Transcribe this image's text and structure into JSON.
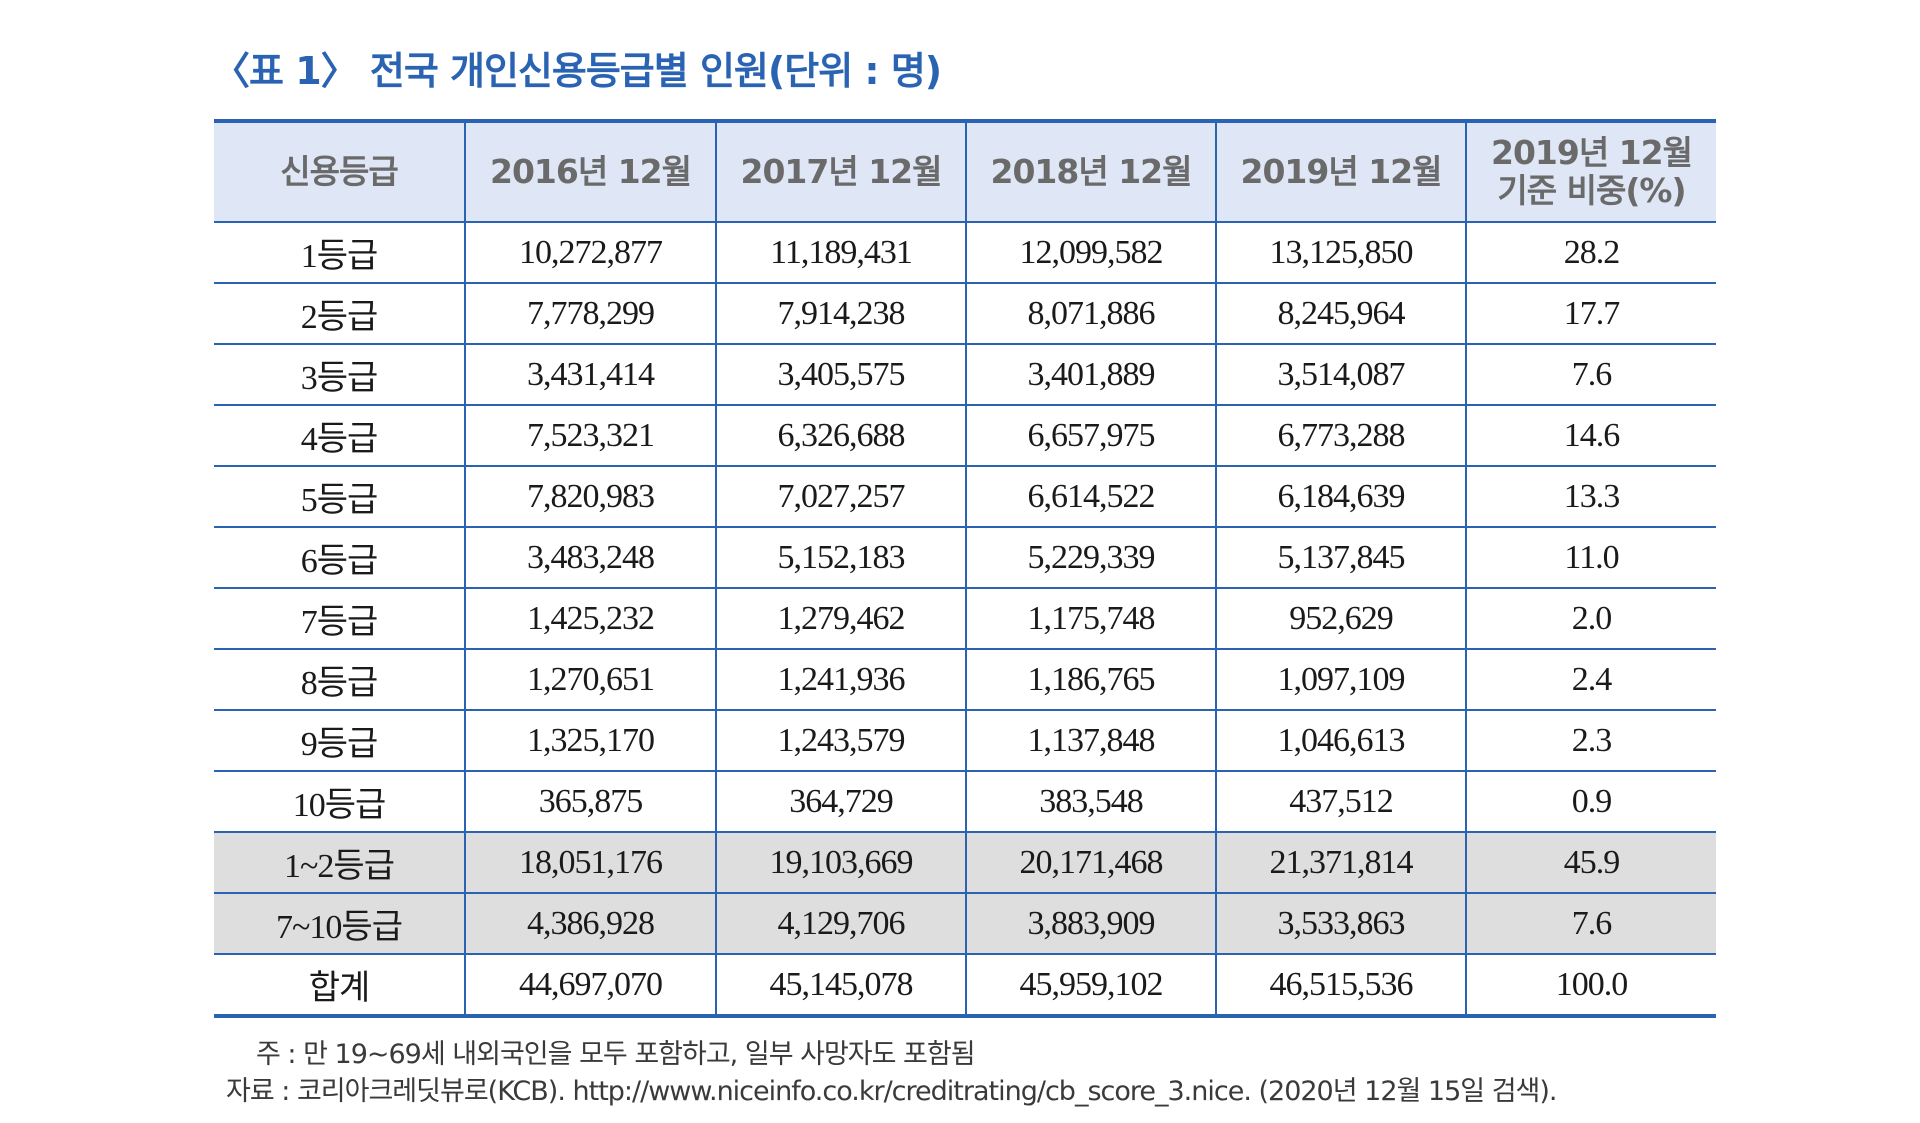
{
  "table": {
    "title": "〈표 1〉 전국 개인신용등급별 인원(단위 : 명)",
    "header": {
      "col0": "신용등급",
      "col1": "2016년 12월",
      "col2": "2017년 12월",
      "col3": "2018년 12월",
      "col4": "2019년 12월",
      "col5_line1": "2019년 12월",
      "col5_line2": "기준 비중(%)"
    },
    "rows": [
      [
        "1등급",
        "10,272,877",
        "11,189,431",
        "12,099,582",
        "13,125,850",
        "28.2"
      ],
      [
        "2등급",
        "7,778,299",
        "7,914,238",
        "8,071,886",
        "8,245,964",
        "17.7"
      ],
      [
        "3등급",
        "3,431,414",
        "3,405,575",
        "3,401,889",
        "3,514,087",
        "7.6"
      ],
      [
        "4등급",
        "7,523,321",
        "6,326,688",
        "6,657,975",
        "6,773,288",
        "14.6"
      ],
      [
        "5등급",
        "7,820,983",
        "7,027,257",
        "6,614,522",
        "6,184,639",
        "13.3"
      ],
      [
        "6등급",
        "3,483,248",
        "5,152,183",
        "5,229,339",
        "5,137,845",
        "11.0"
      ],
      [
        "7등급",
        "1,425,232",
        "1,279,462",
        "1,175,748",
        "952,629",
        "2.0"
      ],
      [
        "8등급",
        "1,270,651",
        "1,241,936",
        "1,186,765",
        "1,097,109",
        "2.4"
      ],
      [
        "9등급",
        "1,325,170",
        "1,243,579",
        "1,137,848",
        "1,046,613",
        "2.3"
      ],
      [
        "10등급",
        "365,875",
        "364,729",
        "383,548",
        "437,512",
        "0.9"
      ],
      [
        "1~2등급",
        "18,051,176",
        "19,103,669",
        "20,171,468",
        "21,371,814",
        "45.9"
      ],
      [
        "7~10등급",
        "4,386,928",
        "4,129,706",
        "3,883,909",
        "3,533,863",
        "7.6"
      ],
      [
        "합계",
        "44,697,070",
        "45,145,078",
        "45,959,102",
        "46,515,536",
        "100.0"
      ]
    ]
  },
  "notes": {
    "note": "주 : 만 19~69세 내외국인을 모두 포함하고, 일부 사망자도 포함됨",
    "source": "자료 : 코리아크레딧뷰로(KCB). http://www.niceinfo.co.kr/creditrating/cb_score_3.nice. (2020년 12월 15일 검색)."
  }
}
